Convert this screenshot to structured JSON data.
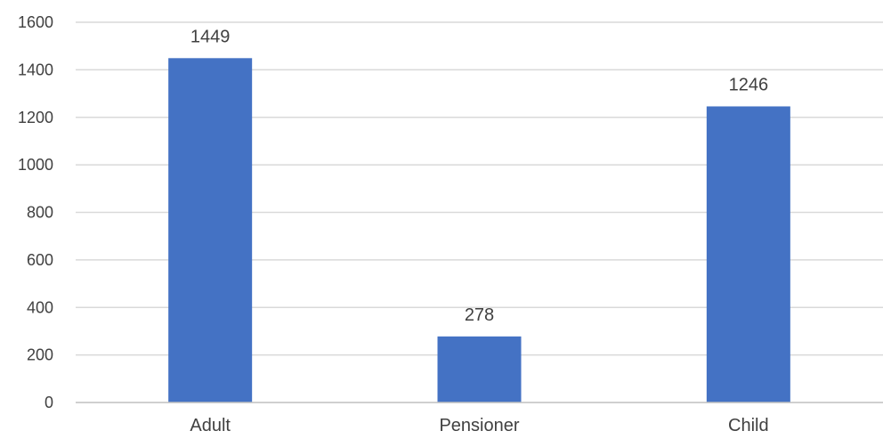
{
  "chart_data": {
    "type": "bar",
    "categories": [
      "Adult",
      "Pensioner",
      "Child"
    ],
    "values": [
      1449,
      278,
      1246
    ],
    "value_labels": [
      "1449",
      "278",
      "1246"
    ],
    "title": "",
    "xlabel": "",
    "ylabel": "",
    "ylim": [
      0,
      1600
    ],
    "yticks": [
      0,
      200,
      400,
      600,
      800,
      1000,
      1200,
      1400,
      1600
    ],
    "ytick_labels": [
      "0",
      "200",
      "400",
      "600",
      "800",
      "1000",
      "1200",
      "1400",
      "1600"
    ],
    "grid": true,
    "legend": "none",
    "colors": {
      "bar": "#4472C4",
      "grid": "#D9D9D9",
      "axis": "#BFBFBF",
      "text": "#404040"
    }
  }
}
